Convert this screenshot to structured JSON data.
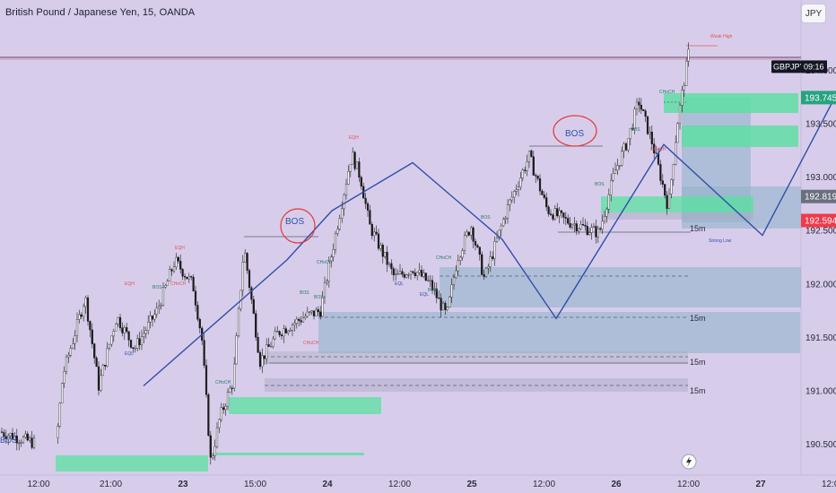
{
  "header": {
    "title": "British Pound / Japanese Yen, 15, OANDA",
    "currency": "JPY"
  },
  "chart_data": {
    "type": "candlestick",
    "ylim": [
      190.3,
      194.5
    ],
    "price_ticks": [
      "194.000",
      "193.500",
      "193.000",
      "192.500",
      "192.000",
      "191.500",
      "191.000",
      "190.500"
    ],
    "time_ticks": [
      "12:00",
      "21:00",
      "23",
      "15:00",
      "24",
      "12:00",
      "25",
      "12:00",
      "26",
      "12:00",
      "27",
      "12:00"
    ],
    "price_levels": [
      {
        "name": "GBPJPY",
        "time": "09:16",
        "value": 194.03,
        "color": "#131722"
      },
      {
        "name": "",
        "value": 193.745,
        "color": "#26a37f"
      },
      {
        "name": "",
        "value": 192.819,
        "color": "#6b6f7e"
      },
      {
        "name": "",
        "value": 192.594,
        "color": "#ef3b4a"
      }
    ],
    "zone_labels": [
      "15m",
      "15m",
      "15m",
      "15m"
    ],
    "structure_labels": [
      "EQH",
      "EQH",
      "EQH",
      "EQL",
      "EQL",
      "EQL",
      "BOS",
      "BOS",
      "BOS",
      "BOS",
      "BOS",
      "BOS",
      "BOS",
      "CHoCH",
      "CHoCH",
      "CHoCH",
      "CHoCH",
      "CHoCH",
      "CHoCH",
      "CHoCH",
      "Weak High",
      "Strong Low"
    ],
    "handwritten_labels": [
      "BOS",
      "BOS"
    ],
    "left_edge_label": "BOS",
    "path": [
      [
        1.6,
        191.05
      ],
      [
        3.2,
        192.23
      ],
      [
        3.7,
        192.69
      ],
      [
        4.6,
        193.14
      ],
      [
        5.6,
        192.42
      ],
      [
        6.2,
        191.68
      ],
      [
        7.4,
        193.31
      ],
      [
        8.5,
        192.46
      ],
      [
        9.3,
        193.74
      ]
    ],
    "candles_description": "15-minute GBPJPY candles from about 190.30 rising to a weak high near 194.20"
  }
}
